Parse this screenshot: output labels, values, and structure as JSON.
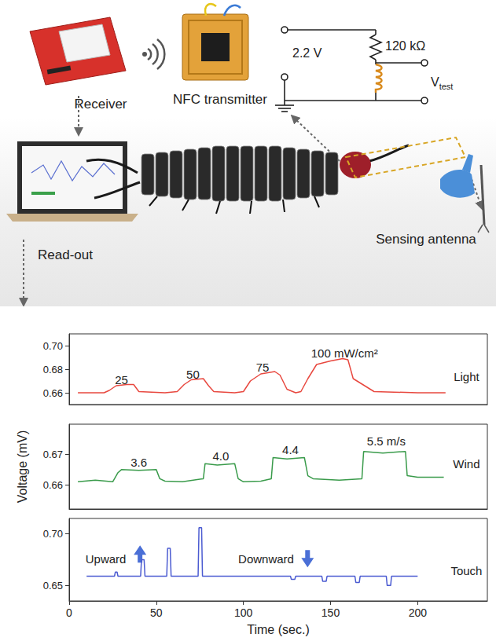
{
  "diagram": {
    "receiver": "Receiver",
    "transmitter": "NFC transmitter",
    "source": "2.2 V",
    "resistor": "120 kΩ",
    "probe": "V",
    "probe_subscript": "test",
    "readout": "Read-out",
    "antenna": "Sensing antenna"
  },
  "chart_data": [
    {
      "type": "line",
      "color": "#e8483f",
      "tick_labels": "y",
      "x": [
        5,
        20,
        23,
        27,
        33,
        37,
        40,
        55,
        62,
        66,
        70,
        77,
        80,
        83,
        95,
        100,
        104,
        110,
        118,
        121,
        125,
        130,
        133,
        137,
        142,
        150,
        157,
        160,
        163,
        175,
        200,
        216
      ],
      "values": [
        0.66,
        0.66,
        0.662,
        0.666,
        0.667,
        0.667,
        0.661,
        0.66,
        0.661,
        0.667,
        0.671,
        0.672,
        0.666,
        0.661,
        0.66,
        0.661,
        0.67,
        0.676,
        0.678,
        0.675,
        0.663,
        0.66,
        0.661,
        0.672,
        0.684,
        0.687,
        0.689,
        0.688,
        0.672,
        0.661,
        0.66,
        0.66
      ],
      "xlim": [
        0,
        240
      ],
      "xticks": [
        0,
        50,
        100,
        150,
        200
      ],
      "ylim": [
        0.65,
        0.71
      ],
      "yticks": [
        0.66,
        0.68,
        {
          "value": 0.7,
          "label": "0.70"
        }
      ],
      "annotations": [
        {
          "text": "25",
          "x": 30,
          "y": 0.671
        },
        {
          "text": "50",
          "x": 71,
          "y": 0.676
        },
        {
          "text": "75",
          "x": 111,
          "y": 0.682
        },
        {
          "text": "100 mW/cm²",
          "x": 158,
          "y": 0.694
        },
        {
          "text": "Light",
          "x": 228,
          "y": 0.674
        }
      ]
    },
    {
      "type": "line",
      "color": "#3a9b4b",
      "tick_labels": "y",
      "ylabel": "Voltage (mV)",
      "x": [
        5,
        15,
        25,
        28,
        30,
        40,
        50,
        52,
        55,
        65,
        77,
        78,
        85,
        95,
        97,
        100,
        110,
        116,
        117,
        125,
        135,
        137,
        140,
        155,
        168,
        169,
        180,
        193,
        194,
        200,
        215
      ],
      "values": [
        0.661,
        0.6615,
        0.661,
        0.664,
        0.665,
        0.6648,
        0.665,
        0.662,
        0.6612,
        0.661,
        0.662,
        0.667,
        0.6665,
        0.667,
        0.662,
        0.661,
        0.6612,
        0.662,
        0.669,
        0.6685,
        0.669,
        0.663,
        0.662,
        0.6615,
        0.662,
        0.671,
        0.6705,
        0.671,
        0.663,
        0.6625,
        0.6625
      ],
      "xlim": [
        0,
        240
      ],
      "xticks": [
        0,
        50,
        100,
        150,
        200
      ],
      "ylim": [
        0.652,
        0.68
      ],
      "yticks": [
        0.66,
        0.67
      ],
      "annotations": [
        {
          "text": "3.6",
          "x": 40,
          "y": 0.6675
        },
        {
          "text": "4.0",
          "x": 87,
          "y": 0.6695
        },
        {
          "text": "4.4",
          "x": 127,
          "y": 0.6715
        },
        {
          "text": "5.5 m/s",
          "x": 182,
          "y": 0.6745
        },
        {
          "text": "Wind",
          "x": 228,
          "y": 0.667
        }
      ]
    },
    {
      "type": "line",
      "color": "#4b5bd1",
      "xlabel": "Time (sec.)",
      "x": [
        10,
        26,
        26.5,
        27.5,
        28,
        41,
        41.5,
        43,
        43.5,
        56,
        56.5,
        58,
        58.5,
        74,
        74.5,
        76,
        76.5,
        127,
        127.5,
        129.5,
        130,
        145,
        145.5,
        147.5,
        148,
        164,
        164.5,
        166.5,
        167,
        182,
        182.5,
        184.5,
        185,
        200
      ],
      "values": [
        0.659,
        0.659,
        0.663,
        0.663,
        0.659,
        0.659,
        0.675,
        0.675,
        0.659,
        0.659,
        0.686,
        0.686,
        0.659,
        0.659,
        0.706,
        0.706,
        0.659,
        0.659,
        0.656,
        0.656,
        0.659,
        0.659,
        0.654,
        0.654,
        0.659,
        0.659,
        0.653,
        0.653,
        0.659,
        0.659,
        0.65,
        0.65,
        0.659,
        0.659
      ],
      "xlim": [
        0,
        240
      ],
      "xticks": [
        0,
        50,
        100,
        150,
        200
      ],
      "ylim": [
        0.635,
        0.715
      ],
      "yticks": [
        0.65,
        {
          "value": 0.7,
          "label": "0.70"
        }
      ],
      "annotations": [
        {
          "text": "Upward",
          "x": 21,
          "y": 0.676
        },
        {
          "text": "Downward",
          "x": 113,
          "y": 0.676
        },
        {
          "text": "Touch",
          "x": 228,
          "y": 0.664
        }
      ]
    }
  ]
}
